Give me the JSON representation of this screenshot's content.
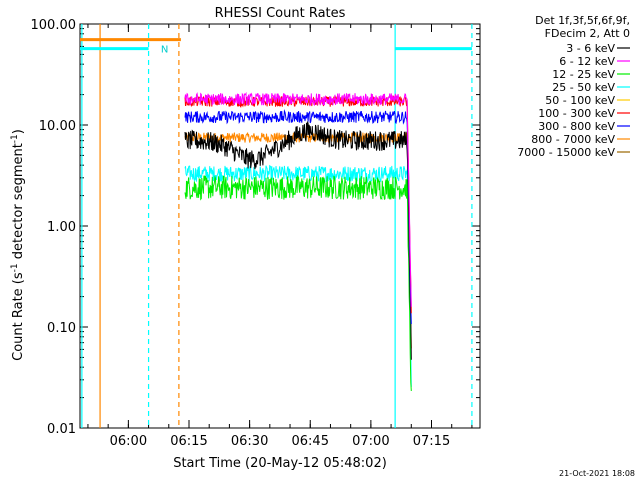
{
  "chart_data": {
    "type": "line",
    "title": "RHESSI Count Rates",
    "xlabel": "Start Time (20-May-12 05:48:02)",
    "ylabel_main": "Count Rate (s",
    "ylabel_sup1": "-1",
    "ylabel_mid": " detector segment",
    "ylabel_sup2": "-1",
    "ylabel_end": ")",
    "y_scale": "log",
    "ylim": [
      0.01,
      100.0
    ],
    "xlim": [
      "05:48:02",
      "07:27:00"
    ],
    "x_ticks": [
      {
        "t": "06:00",
        "label": "06:00"
      },
      {
        "t": "06:15",
        "label": "06:15"
      },
      {
        "t": "06:30",
        "label": "06:30"
      },
      {
        "t": "06:45",
        "label": "06:45"
      },
      {
        "t": "07:00",
        "label": "07:00"
      },
      {
        "t": "07:15",
        "label": "07:15"
      }
    ],
    "y_ticks": [
      {
        "v": 100,
        "label": "100.00"
      },
      {
        "v": 10,
        "label": "10.00"
      },
      {
        "v": 1,
        "label": "1.00"
      },
      {
        "v": 0.1,
        "label": "0.10"
      },
      {
        "v": 0.01,
        "label": "0.01"
      }
    ],
    "legend_header": [
      "Det 1f,3f,5f,6f,9f,",
      "FDecim 2, Att 0"
    ],
    "legend_placement": "top-right outside plot",
    "series": [
      {
        "name": "3 - 6 keV",
        "color": "#000000",
        "level": 7.0,
        "noise": 0.1
      },
      {
        "name": "6 - 12 keV",
        "color": "#ff00ff",
        "level": 18.0,
        "noise": 0.06
      },
      {
        "name": "12 - 25 keV",
        "color": "#00ee00",
        "level": 2.4,
        "noise": 0.12
      },
      {
        "name": "25 - 50 keV",
        "color": "#00ffff",
        "level": 3.3,
        "noise": 0.08
      },
      {
        "name": "50 - 100 keV",
        "color": "#ffcc00",
        "level": 0,
        "noise": 0
      },
      {
        "name": "100 - 300 keV",
        "color": "#ff0000",
        "level": 17.0,
        "noise": 0.05
      },
      {
        "name": "300 - 800 keV",
        "color": "#0000ff",
        "level": 12.0,
        "noise": 0.06
      },
      {
        "name": "800 - 7000 keV",
        "color": "#ff8800",
        "level": 7.5,
        "noise": 0.05
      },
      {
        "name": "7000 - 15000 keV",
        "color": "#996600",
        "level": 0,
        "noise": 0
      }
    ],
    "data_interval": [
      "06:14:00",
      "07:10:00"
    ],
    "attenuator_bar": {
      "label": "N",
      "start": "05:48:02",
      "end": "06:13:00",
      "color": "#ff8800",
      "value": 70
    },
    "night_bars": [
      {
        "start": "05:48:02",
        "end": "06:05:00",
        "value": 57,
        "color": "#00ffff"
      },
      {
        "start": "07:06:00",
        "end": "07:25:00",
        "value": 57,
        "color": "#00ffff"
      }
    ],
    "markers": [
      {
        "t": "05:48:30",
        "style": "solid",
        "color": "#00ffff"
      },
      {
        "t": "05:53:00",
        "style": "solid",
        "color": "#ff8800"
      },
      {
        "t": "06:05:00",
        "style": "dashed",
        "color": "#00ffff"
      },
      {
        "t": "06:12:30",
        "style": "dashed",
        "color": "#ff8800"
      },
      {
        "t": "07:06:00",
        "style": "solid",
        "color": "#00ffff"
      },
      {
        "t": "07:25:00",
        "style": "dashed",
        "color": "#00ffff"
      }
    ]
  },
  "footer": {
    "timestamp": "21-Oct-2021 18:08"
  }
}
